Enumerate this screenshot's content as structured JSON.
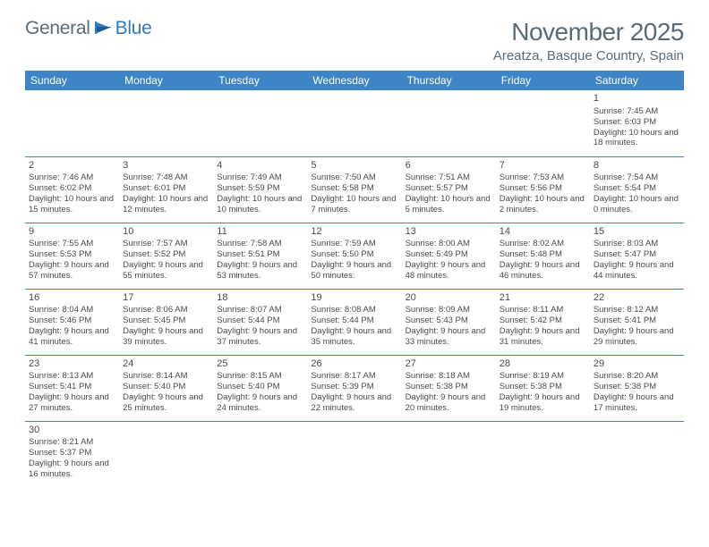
{
  "logo": {
    "text1": "General",
    "text2": "Blue"
  },
  "title": "November 2025",
  "location": "Areatza, Basque Country, Spain",
  "colors": {
    "headerBg": "#3d85c6",
    "headerText": "#ffffff",
    "bodyText": "#4a4a4a",
    "titleText": "#5b6b76",
    "border": "#3d85c6",
    "logoAccent": "#2f7bbf"
  },
  "dayNames": [
    "Sunday",
    "Monday",
    "Tuesday",
    "Wednesday",
    "Thursday",
    "Friday",
    "Saturday"
  ],
  "weeks": [
    [
      null,
      null,
      null,
      null,
      null,
      null,
      {
        "n": "1",
        "sr": "7:45 AM",
        "ss": "6:03 PM",
        "dl": "10 hours and 18 minutes."
      }
    ],
    [
      {
        "n": "2",
        "sr": "7:46 AM",
        "ss": "6:02 PM",
        "dl": "10 hours and 15 minutes."
      },
      {
        "n": "3",
        "sr": "7:48 AM",
        "ss": "6:01 PM",
        "dl": "10 hours and 12 minutes."
      },
      {
        "n": "4",
        "sr": "7:49 AM",
        "ss": "5:59 PM",
        "dl": "10 hours and 10 minutes."
      },
      {
        "n": "5",
        "sr": "7:50 AM",
        "ss": "5:58 PM",
        "dl": "10 hours and 7 minutes."
      },
      {
        "n": "6",
        "sr": "7:51 AM",
        "ss": "5:57 PM",
        "dl": "10 hours and 5 minutes."
      },
      {
        "n": "7",
        "sr": "7:53 AM",
        "ss": "5:56 PM",
        "dl": "10 hours and 2 minutes."
      },
      {
        "n": "8",
        "sr": "7:54 AM",
        "ss": "5:54 PM",
        "dl": "10 hours and 0 minutes."
      }
    ],
    [
      {
        "n": "9",
        "sr": "7:55 AM",
        "ss": "5:53 PM",
        "dl": "9 hours and 57 minutes."
      },
      {
        "n": "10",
        "sr": "7:57 AM",
        "ss": "5:52 PM",
        "dl": "9 hours and 55 minutes."
      },
      {
        "n": "11",
        "sr": "7:58 AM",
        "ss": "5:51 PM",
        "dl": "9 hours and 53 minutes."
      },
      {
        "n": "12",
        "sr": "7:59 AM",
        "ss": "5:50 PM",
        "dl": "9 hours and 50 minutes."
      },
      {
        "n": "13",
        "sr": "8:00 AM",
        "ss": "5:49 PM",
        "dl": "9 hours and 48 minutes."
      },
      {
        "n": "14",
        "sr": "8:02 AM",
        "ss": "5:48 PM",
        "dl": "9 hours and 46 minutes."
      },
      {
        "n": "15",
        "sr": "8:03 AM",
        "ss": "5:47 PM",
        "dl": "9 hours and 44 minutes."
      }
    ],
    [
      {
        "n": "16",
        "sr": "8:04 AM",
        "ss": "5:46 PM",
        "dl": "9 hours and 41 minutes."
      },
      {
        "n": "17",
        "sr": "8:06 AM",
        "ss": "5:45 PM",
        "dl": "9 hours and 39 minutes."
      },
      {
        "n": "18",
        "sr": "8:07 AM",
        "ss": "5:44 PM",
        "dl": "9 hours and 37 minutes."
      },
      {
        "n": "19",
        "sr": "8:08 AM",
        "ss": "5:44 PM",
        "dl": "9 hours and 35 minutes."
      },
      {
        "n": "20",
        "sr": "8:09 AM",
        "ss": "5:43 PM",
        "dl": "9 hours and 33 minutes."
      },
      {
        "n": "21",
        "sr": "8:11 AM",
        "ss": "5:42 PM",
        "dl": "9 hours and 31 minutes."
      },
      {
        "n": "22",
        "sr": "8:12 AM",
        "ss": "5:41 PM",
        "dl": "9 hours and 29 minutes."
      }
    ],
    [
      {
        "n": "23",
        "sr": "8:13 AM",
        "ss": "5:41 PM",
        "dl": "9 hours and 27 minutes."
      },
      {
        "n": "24",
        "sr": "8:14 AM",
        "ss": "5:40 PM",
        "dl": "9 hours and 25 minutes."
      },
      {
        "n": "25",
        "sr": "8:15 AM",
        "ss": "5:40 PM",
        "dl": "9 hours and 24 minutes."
      },
      {
        "n": "26",
        "sr": "8:17 AM",
        "ss": "5:39 PM",
        "dl": "9 hours and 22 minutes."
      },
      {
        "n": "27",
        "sr": "8:18 AM",
        "ss": "5:38 PM",
        "dl": "9 hours and 20 minutes."
      },
      {
        "n": "28",
        "sr": "8:19 AM",
        "ss": "5:38 PM",
        "dl": "9 hours and 19 minutes."
      },
      {
        "n": "29",
        "sr": "8:20 AM",
        "ss": "5:38 PM",
        "dl": "9 hours and 17 minutes."
      }
    ],
    [
      {
        "n": "30",
        "sr": "8:21 AM",
        "ss": "5:37 PM",
        "dl": "9 hours and 16 minutes."
      },
      null,
      null,
      null,
      null,
      null,
      null
    ]
  ],
  "labels": {
    "sunrise": "Sunrise:",
    "sunset": "Sunset:",
    "daylight": "Daylight:"
  }
}
